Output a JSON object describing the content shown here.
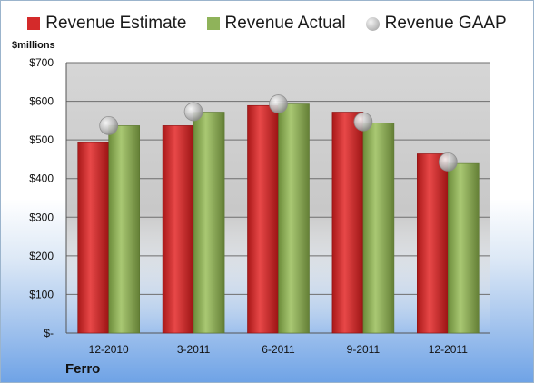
{
  "chart_data": {
    "type": "bar",
    "ylabel": "$millions",
    "company": "Ferro",
    "categories": [
      "12-2010",
      "3-2011",
      "6-2011",
      "9-2011",
      "12-2011"
    ],
    "y_ticks": [
      "$-",
      "$100",
      "$200",
      "$300",
      "$400",
      "$500",
      "$600",
      "$700"
    ],
    "ylim": [
      0,
      700
    ],
    "grid": true,
    "legend_position": "top",
    "series": [
      {
        "name": "Revenue Estimate",
        "kind": "bar",
        "color": "#d42a2a",
        "values": [
          493,
          537,
          589,
          572,
          464
        ]
      },
      {
        "name": "Revenue Actual",
        "kind": "bar",
        "color": "#8fb35a",
        "values": [
          537,
          572,
          593,
          544,
          439
        ]
      },
      {
        "name": "Revenue GAAP",
        "kind": "marker",
        "color": "#b0b0b0",
        "values": [
          537,
          573,
          593,
          547,
          443
        ]
      }
    ]
  }
}
